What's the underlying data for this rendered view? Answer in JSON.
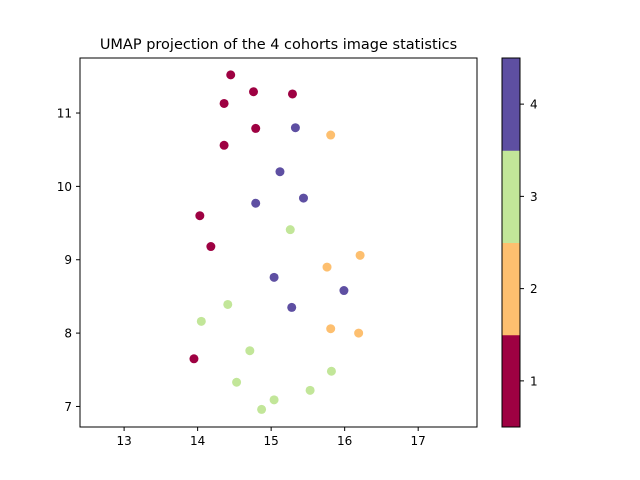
{
  "chart_data": {
    "type": "scatter",
    "title": "UMAP projection of the 4 cohorts image statistics",
    "xlabel": "",
    "ylabel": "",
    "xlim": [
      12.4,
      17.8
    ],
    "ylim": [
      6.72,
      11.75
    ],
    "xticks": [
      "13",
      "14",
      "15",
      "16",
      "17"
    ],
    "yticks": [
      "7",
      "8",
      "9",
      "10",
      "11"
    ],
    "grid": false,
    "colorbar": {
      "ticks": [
        "1",
        "2",
        "3",
        "4"
      ],
      "colors": [
        "#9e0142",
        "#fdbf6f",
        "#c2e699",
        "#5e4fa2"
      ]
    },
    "points": [
      {
        "x": 14.45,
        "y": 11.52,
        "c": 1
      },
      {
        "x": 14.76,
        "y": 11.29,
        "c": 1
      },
      {
        "x": 15.29,
        "y": 11.26,
        "c": 1
      },
      {
        "x": 14.36,
        "y": 11.13,
        "c": 1
      },
      {
        "x": 14.79,
        "y": 10.79,
        "c": 1
      },
      {
        "x": 14.36,
        "y": 10.56,
        "c": 1
      },
      {
        "x": 14.03,
        "y": 9.6,
        "c": 1
      },
      {
        "x": 14.18,
        "y": 9.18,
        "c": 1
      },
      {
        "x": 13.95,
        "y": 7.65,
        "c": 1
      },
      {
        "x": 15.81,
        "y": 10.7,
        "c": 2
      },
      {
        "x": 16.21,
        "y": 9.06,
        "c": 2
      },
      {
        "x": 15.76,
        "y": 8.9,
        "c": 2
      },
      {
        "x": 15.81,
        "y": 8.06,
        "c": 2
      },
      {
        "x": 16.19,
        "y": 8.0,
        "c": 2
      },
      {
        "x": 15.26,
        "y": 9.41,
        "c": 3
      },
      {
        "x": 14.41,
        "y": 8.39,
        "c": 3
      },
      {
        "x": 14.05,
        "y": 8.16,
        "c": 3
      },
      {
        "x": 14.71,
        "y": 7.76,
        "c": 3
      },
      {
        "x": 15.82,
        "y": 7.48,
        "c": 3
      },
      {
        "x": 14.53,
        "y": 7.33,
        "c": 3
      },
      {
        "x": 15.53,
        "y": 7.22,
        "c": 3
      },
      {
        "x": 15.04,
        "y": 7.09,
        "c": 3
      },
      {
        "x": 14.87,
        "y": 6.96,
        "c": 3
      },
      {
        "x": 15.33,
        "y": 10.8,
        "c": 4
      },
      {
        "x": 15.12,
        "y": 10.2,
        "c": 4
      },
      {
        "x": 15.44,
        "y": 9.84,
        "c": 4
      },
      {
        "x": 14.79,
        "y": 9.77,
        "c": 4
      },
      {
        "x": 15.04,
        "y": 8.76,
        "c": 4
      },
      {
        "x": 15.99,
        "y": 8.58,
        "c": 4
      },
      {
        "x": 15.28,
        "y": 8.35,
        "c": 4
      }
    ]
  }
}
